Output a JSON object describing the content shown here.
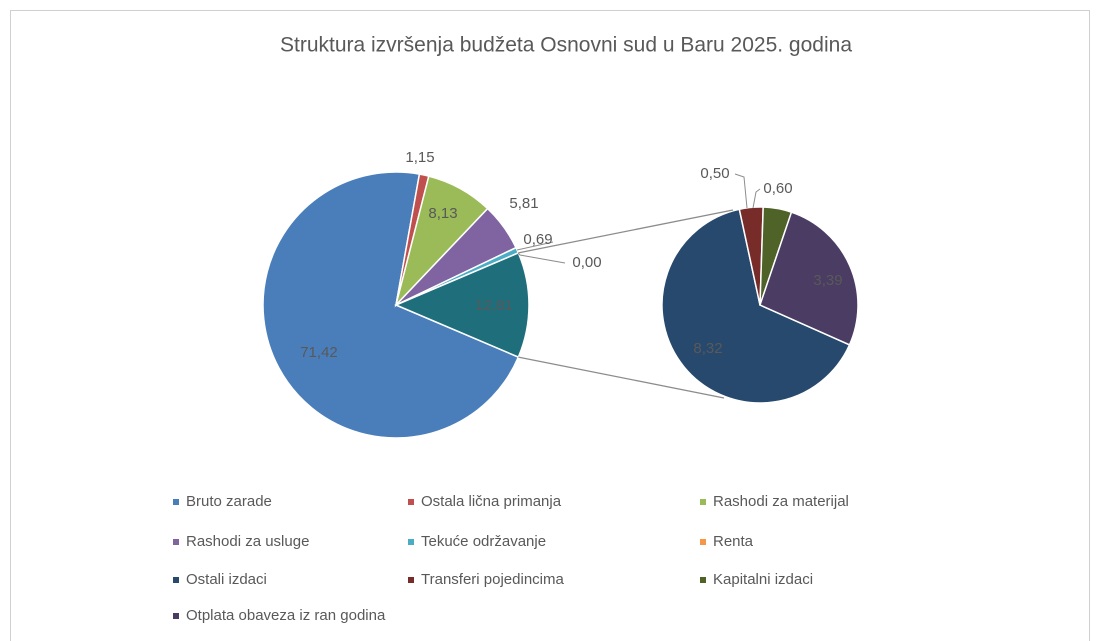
{
  "chart_data": {
    "type": "pie-of-pie",
    "title": "Struktura izvršenja budžeta Osnovni sud u Baru 2025. godina",
    "main": {
      "categories": [
        "Bruto zarade",
        "Ostala lična primanja",
        "Rashodi za materijal",
        "Rashodi za  usluge",
        "Tekuće održavanje",
        "Renta",
        null
      ],
      "values": [
        71.42,
        1.15,
        8.13,
        5.81,
        0.69,
        0.0,
        12.81
      ],
      "value_labels": [
        "71,42",
        "1,15",
        "8,13",
        "5,81",
        "0,69",
        "0,00",
        "12,81"
      ],
      "colors": [
        "#4a7ebb",
        "#c0504d",
        "#9bbb59",
        "#8064a2",
        "#4bacc6",
        "#f79646",
        "#1f6e7c"
      ]
    },
    "secondary": {
      "categories": [
        "Ostali izdaci",
        "Transferi pojedincima",
        "Kapitalni izdaci",
        "Otplata obaveza iz ran godina"
      ],
      "values": [
        8.32,
        0.5,
        0.6,
        3.39
      ],
      "value_labels": [
        "8,32",
        "0,50",
        "0,60",
        "3,39"
      ],
      "colors": [
        "#27496d",
        "#772c2a",
        "#4f6228",
        "#4b3c63"
      ]
    }
  }
}
